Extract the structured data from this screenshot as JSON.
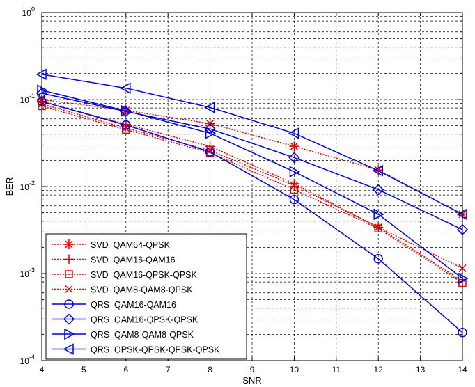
{
  "chart_data": {
    "type": "line",
    "title": "",
    "xlabel": "SNR",
    "ylabel": "BER",
    "xlim": [
      4,
      14
    ],
    "ylim": [
      0.0001,
      1
    ],
    "yscale": "log",
    "grid": true,
    "legend_position": "bottom-left",
    "xticks": [
      "4",
      "5",
      "6",
      "7",
      "8",
      "9",
      "10",
      "11",
      "12",
      "13",
      "14"
    ],
    "yticks": [
      {
        "value": 0.0001,
        "base": "10",
        "exp": "-4"
      },
      {
        "value": 0.001,
        "base": "10",
        "exp": "-3"
      },
      {
        "value": 0.01,
        "base": "10",
        "exp": "-2"
      },
      {
        "value": 0.1,
        "base": "10",
        "exp": "-1"
      },
      {
        "value": 1,
        "base": "10",
        "exp": "0"
      }
    ],
    "x": [
      4,
      6,
      8,
      10,
      12,
      14
    ],
    "series": [
      {
        "name": "SVD  QAM64-QPSK",
        "color": "#e00000",
        "marker": "star",
        "dash": true,
        "values": [
          0.1,
          0.075,
          0.053,
          0.029,
          0.0155,
          0.0048
        ]
      },
      {
        "name": "SVD  QAM16-QAM16",
        "color": "#e00000",
        "marker": "plus",
        "dash": true,
        "values": [
          0.095,
          0.052,
          0.029,
          0.0108,
          0.0034,
          0.00082
        ]
      },
      {
        "name": "SVD  QAM16-QPSK-QPSK",
        "color": "#e00000",
        "marker": "square",
        "dash": true,
        "values": [
          0.084,
          0.045,
          0.0245,
          0.0092,
          0.0033,
          0.00078
        ]
      },
      {
        "name": "SVD  QAM8-QAM8-QPSK",
        "color": "#e00000",
        "marker": "x",
        "dash": true,
        "values": [
          0.089,
          0.047,
          0.026,
          0.0103,
          0.0034,
          0.00115
        ]
      },
      {
        "name": "QRS  QAM16-QAM16",
        "color": "#0000e0",
        "marker": "circle",
        "dash": false,
        "values": [
          0.095,
          0.051,
          0.025,
          0.0071,
          0.00148,
          0.00021
        ]
      },
      {
        "name": "QRS  QAM16-QPSK-QPSK",
        "color": "#0000e0",
        "marker": "diamond",
        "dash": false,
        "values": [
          0.118,
          0.073,
          0.046,
          0.0215,
          0.0092,
          0.0032
        ]
      },
      {
        "name": "QRS  QAM8-QAM8-QPSK",
        "color": "#0000e0",
        "marker": "triangle-right",
        "dash": false,
        "values": [
          0.128,
          0.074,
          0.041,
          0.0148,
          0.0048,
          0.00088
        ]
      },
      {
        "name": "QRS  QPSK-QPSK-QPSK-QPSK",
        "color": "#0000e0",
        "marker": "triangle-left",
        "dash": false,
        "values": [
          0.195,
          0.135,
          0.081,
          0.041,
          0.0152,
          0.0048
        ]
      }
    ]
  }
}
